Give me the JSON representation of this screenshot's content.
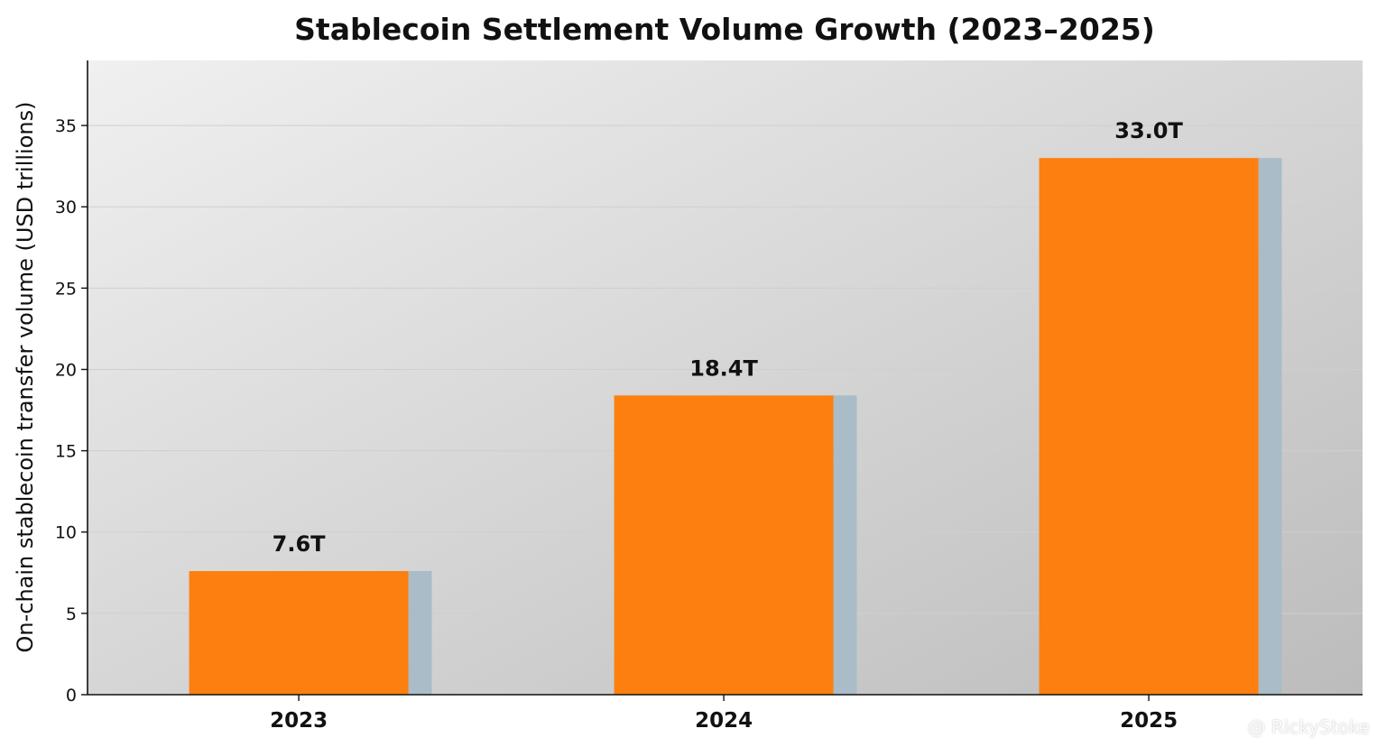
{
  "chart_data": {
    "type": "bar",
    "title": "Stablecoin Settlement Volume Growth (2023–2025)",
    "xlabel": "",
    "ylabel": "On-chain stablecoin transfer volume (USD trillions)",
    "categories": [
      "2023",
      "2024",
      "2025"
    ],
    "values": [
      7.6,
      18.4,
      33.0
    ],
    "data_labels": [
      "7.6T",
      "18.4T",
      "33.0T"
    ],
    "ylim": [
      0,
      39
    ],
    "yticks": [
      0,
      5,
      10,
      15,
      20,
      25,
      30,
      35
    ],
    "grid": true,
    "colors": {
      "bar": "#fd7f10",
      "bar_shadow": "#a9bcc8",
      "bg_light": "#f0f0f0",
      "bg_dark": "#bdbdbd"
    }
  },
  "watermark": "@ RickyStoke"
}
